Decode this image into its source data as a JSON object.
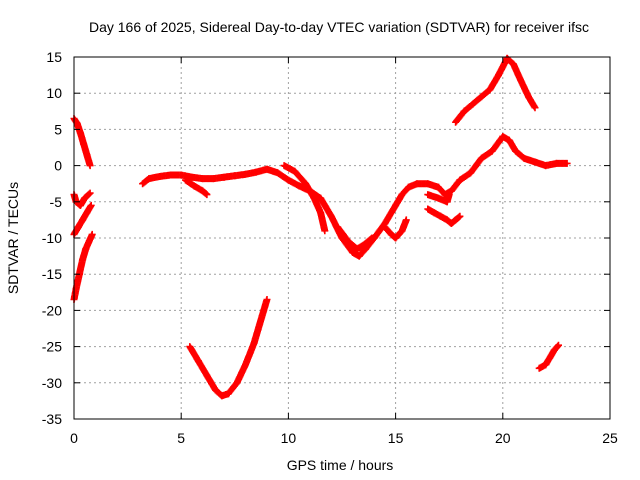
{
  "chart_data": {
    "type": "scatter",
    "title": "Day 166 of 2025, Sidereal Day-to-day VTEC variation (SDTVAR) for receiver ifsc",
    "xlabel": "GPS time / hours",
    "ylabel": "SDTVAR / TECUs",
    "xlim": [
      0,
      25
    ],
    "ylim": [
      -35,
      15
    ],
    "x_ticks": [
      "0",
      "5",
      "10",
      "15",
      "20",
      "25"
    ],
    "y_ticks": [
      "15",
      "10",
      "5",
      "0",
      "-5",
      "-10",
      "-15",
      "-20",
      "-25",
      "-30",
      "-35"
    ],
    "x_tick_values": [
      0,
      5,
      10,
      15,
      20,
      25
    ],
    "y_tick_values": [
      15,
      10,
      5,
      0,
      -5,
      -10,
      -15,
      -20,
      -25,
      -30,
      -35
    ],
    "grid": true,
    "marker": "+",
    "series_color": "#ff0000",
    "series": [
      {
        "segments": [
          [
            [
              0.0,
              6.5
            ],
            [
              0.15,
              5.8
            ],
            [
              0.3,
              4.5
            ],
            [
              0.45,
              3.0
            ],
            [
              0.6,
              1.5
            ],
            [
              0.75,
              0.0
            ]
          ],
          [
            [
              0.0,
              -4.0
            ],
            [
              0.1,
              -5.0
            ],
            [
              0.3,
              -5.5
            ],
            [
              0.5,
              -4.5
            ],
            [
              0.75,
              -3.8
            ]
          ],
          [
            [
              0.0,
              -9.5
            ],
            [
              0.2,
              -8.5
            ],
            [
              0.4,
              -7.5
            ],
            [
              0.6,
              -6.5
            ],
            [
              0.8,
              -5.5
            ]
          ],
          [
            [
              0.0,
              -18.5
            ],
            [
              0.1,
              -17.0
            ],
            [
              0.25,
              -15.0
            ],
            [
              0.4,
              -13.0
            ],
            [
              0.55,
              -11.5
            ],
            [
              0.7,
              -10.5
            ],
            [
              0.85,
              -9.5
            ]
          ],
          [
            [
              3.2,
              -2.5
            ],
            [
              3.5,
              -1.8
            ],
            [
              4.0,
              -1.5
            ],
            [
              4.5,
              -1.3
            ],
            [
              5.0,
              -1.3
            ],
            [
              5.5,
              -1.6
            ],
            [
              6.0,
              -1.8
            ],
            [
              6.5,
              -1.8
            ],
            [
              7.0,
              -1.6
            ],
            [
              7.5,
              -1.4
            ],
            [
              8.0,
              -1.2
            ],
            [
              8.5,
              -0.9
            ],
            [
              9.0,
              -0.5
            ],
            [
              9.5,
              -1.0
            ],
            [
              10.0,
              -2.0
            ],
            [
              10.5,
              -2.8
            ],
            [
              11.0,
              -3.5
            ],
            [
              11.5,
              -4.5
            ],
            [
              12.0,
              -7.0
            ],
            [
              12.5,
              -10.0
            ],
            [
              13.0,
              -12.0
            ],
            [
              13.3,
              -12.5
            ],
            [
              13.6,
              -11.5
            ],
            [
              14.0,
              -10.0
            ],
            [
              14.5,
              -8.0
            ],
            [
              15.0,
              -5.5
            ],
            [
              15.3,
              -4.0
            ],
            [
              15.6,
              -3.0
            ],
            [
              16.0,
              -2.5
            ],
            [
              16.5,
              -2.5
            ],
            [
              17.0,
              -3.0
            ],
            [
              17.3,
              -4.0
            ],
            [
              17.6,
              -3.5
            ],
            [
              18.0,
              -2.0
            ],
            [
              18.5,
              -1.0
            ],
            [
              19.0,
              1.0
            ],
            [
              19.5,
              2.0
            ],
            [
              20.0,
              4.0
            ],
            [
              20.3,
              3.5
            ],
            [
              20.6,
              2.0
            ],
            [
              21.0,
              1.0
            ],
            [
              21.5,
              0.5
            ],
            [
              22.0,
              0.0
            ],
            [
              22.5,
              0.3
            ],
            [
              23.0,
              0.3
            ]
          ],
          [
            [
              5.2,
              -2.0
            ],
            [
              5.6,
              -2.8
            ],
            [
              6.0,
              -3.5
            ],
            [
              6.2,
              -4.0
            ]
          ],
          [
            [
              9.8,
              0.0
            ],
            [
              10.3,
              -0.8
            ],
            [
              10.8,
              -2.5
            ],
            [
              11.2,
              -4.5
            ],
            [
              11.5,
              -6.5
            ],
            [
              11.7,
              -9.0
            ]
          ],
          [
            [
              12.3,
              -8.5
            ],
            [
              12.8,
              -10.5
            ],
            [
              13.2,
              -11.5
            ],
            [
              13.5,
              -11.0
            ],
            [
              13.9,
              -10.0
            ]
          ],
          [
            [
              14.5,
              -8.5
            ],
            [
              14.8,
              -9.5
            ],
            [
              15.0,
              -10.0
            ],
            [
              15.3,
              -9.0
            ],
            [
              15.5,
              -7.5
            ]
          ],
          [
            [
              16.5,
              -4.0
            ],
            [
              17.0,
              -4.5
            ],
            [
              17.4,
              -5.0
            ],
            [
              17.5,
              -4.0
            ]
          ],
          [
            [
              16.5,
              -6.0
            ],
            [
              16.8,
              -6.5
            ],
            [
              17.1,
              -7.0
            ],
            [
              17.4,
              -7.5
            ],
            [
              17.6,
              -8.0
            ],
            [
              17.8,
              -7.5
            ],
            [
              18.0,
              -7.0
            ]
          ],
          [
            [
              17.8,
              6.0
            ],
            [
              18.2,
              7.5
            ],
            [
              18.6,
              8.5
            ],
            [
              19.0,
              9.5
            ],
            [
              19.4,
              10.5
            ],
            [
              19.8,
              12.5
            ],
            [
              20.2,
              14.8
            ],
            [
              20.5,
              14.0
            ],
            [
              20.8,
              12.0
            ],
            [
              21.2,
              9.5
            ],
            [
              21.5,
              8.0
            ]
          ],
          [
            [
              5.4,
              -25.0
            ],
            [
              5.8,
              -27.0
            ],
            [
              6.2,
              -29.0
            ],
            [
              6.6,
              -31.0
            ],
            [
              6.9,
              -31.8
            ],
            [
              7.2,
              -31.5
            ],
            [
              7.6,
              -30.0
            ],
            [
              8.0,
              -27.5
            ],
            [
              8.4,
              -24.5
            ],
            [
              8.7,
              -21.5
            ],
            [
              9.0,
              -18.5
            ]
          ],
          [
            [
              21.7,
              -28.0
            ],
            [
              22.0,
              -27.5
            ],
            [
              22.2,
              -26.5
            ],
            [
              22.4,
              -25.5
            ],
            [
              22.6,
              -24.8
            ]
          ]
        ]
      }
    ]
  }
}
